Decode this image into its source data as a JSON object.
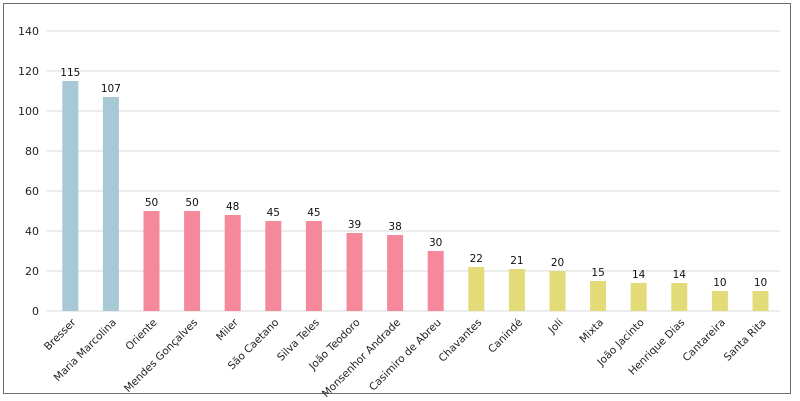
{
  "chart_data": {
    "type": "bar",
    "title": "",
    "xlabel": "",
    "ylabel": "",
    "ylim": [
      0,
      140
    ],
    "yticks": [
      0,
      20,
      40,
      60,
      80,
      100,
      120,
      140
    ],
    "grid": true,
    "legend": "none",
    "categories": [
      "Bresser",
      "Maria Marcolina",
      "Oriente",
      "Mendes Gonçalves",
      "Miler",
      "São Caetano",
      "Silva Teles",
      "João Teodoro",
      "Monsenhor Andrade",
      "Casimiro de Abreu",
      "Chavantes",
      "Canindé",
      "Joli",
      "Mixta",
      "João Jacinto",
      "Henrique Dias",
      "Cantareira",
      "Santa Rita"
    ],
    "values": [
      115,
      107,
      50,
      50,
      48,
      45,
      45,
      39,
      38,
      30,
      22,
      21,
      20,
      15,
      14,
      14,
      10,
      10
    ],
    "bar_colors": [
      "#a7c9d5",
      "#a7c9d5",
      "#f5889b",
      "#f5889b",
      "#f5889b",
      "#f5889b",
      "#f5889b",
      "#f5889b",
      "#f5889b",
      "#f5889b",
      "#e3db78",
      "#e3db78",
      "#e3db78",
      "#e3db78",
      "#e3db78",
      "#e3db78",
      "#e3db78",
      "#e3db78"
    ]
  }
}
